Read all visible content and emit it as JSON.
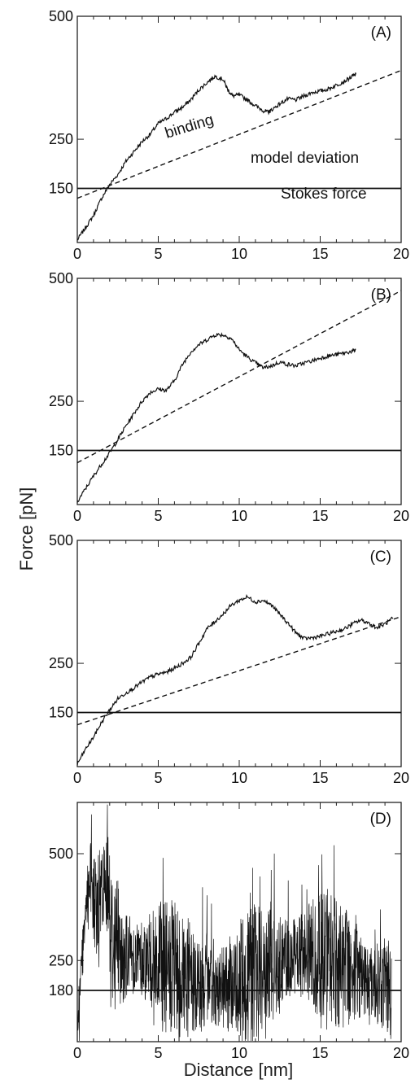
{
  "figure": {
    "ylabel": "Force [pN]",
    "xlabel": "Distance [nm]"
  },
  "chart_data": [
    {
      "type": "line",
      "panel_label": "(A)",
      "xlim": [
        0,
        20
      ],
      "ylim": [
        40,
        500
      ],
      "x_ticks": [
        0,
        5,
        10,
        15,
        20
      ],
      "y_ticks": [
        150,
        250,
        500
      ],
      "grid": false,
      "annotations": [
        "binding",
        "model deviation",
        "Stokes force"
      ],
      "series": [
        {
          "style": "solid",
          "x": [
            0,
            0.5,
            1,
            1.5,
            2,
            2.5,
            3,
            3.5,
            4,
            4.5,
            5,
            5.5,
            6,
            6.5,
            7,
            7.5,
            8,
            8.5,
            9,
            9.3,
            9.6,
            10,
            10.5,
            11,
            11.5,
            11.8,
            12,
            12.5,
            13,
            13.5,
            14,
            14.5,
            15,
            15.5,
            16,
            16.5,
            17,
            17.2
          ],
          "y": [
            45,
            70,
            95,
            130,
            158,
            178,
            205,
            225,
            245,
            260,
            282,
            292,
            305,
            315,
            330,
            350,
            365,
            378,
            372,
            350,
            338,
            340,
            330,
            318,
            308,
            305,
            310,
            322,
            332,
            330,
            338,
            345,
            348,
            352,
            360,
            368,
            378,
            382
          ]
        },
        {
          "style": "dashed",
          "x": [
            0,
            20
          ],
          "y": [
            130,
            390
          ]
        },
        {
          "style": "solid",
          "x": [
            0,
            20
          ],
          "y": [
            150,
            150
          ]
        }
      ]
    },
    {
      "type": "line",
      "panel_label": "(B)",
      "xlim": [
        0,
        20
      ],
      "ylim": [
        40,
        500
      ],
      "x_ticks": [
        0,
        5,
        10,
        15,
        20
      ],
      "y_ticks": [
        150,
        250,
        500
      ],
      "grid": false,
      "series": [
        {
          "style": "solid",
          "x": [
            0,
            0.5,
            1,
            1.5,
            2,
            2.5,
            3,
            3.5,
            4,
            4.5,
            5,
            5.5,
            6,
            6.5,
            7,
            7.5,
            8,
            8.5,
            9,
            9.5,
            10,
            10.5,
            11,
            11.5,
            12,
            12.5,
            13,
            13.5,
            14,
            14.5,
            15,
            15.5,
            16,
            16.5,
            17,
            17.2
          ],
          "y": [
            45,
            72,
            98,
            122,
            145,
            172,
            200,
            225,
            250,
            268,
            275,
            272,
            292,
            325,
            350,
            365,
            375,
            385,
            385,
            378,
            355,
            340,
            328,
            318,
            322,
            330,
            325,
            322,
            328,
            332,
            338,
            342,
            345,
            348,
            352,
            355
          ]
        },
        {
          "style": "dashed",
          "x": [
            0,
            20
          ],
          "y": [
            125,
            475
          ]
        },
        {
          "style": "solid",
          "x": [
            0,
            20
          ],
          "y": [
            150,
            150
          ]
        }
      ]
    },
    {
      "type": "line",
      "panel_label": "(C)",
      "xlim": [
        0,
        20
      ],
      "ylim": [
        40,
        500
      ],
      "x_ticks": [
        0,
        5,
        10,
        15,
        20
      ],
      "y_ticks": [
        150,
        250,
        500
      ],
      "grid": false,
      "series": [
        {
          "style": "solid",
          "x": [
            0,
            0.5,
            1,
            1.5,
            2,
            2.5,
            3,
            3.5,
            4,
            4.5,
            5,
            5.5,
            6,
            6.5,
            7,
            7.5,
            8,
            8.5,
            9,
            9.5,
            10,
            10.5,
            11,
            11.5,
            12,
            12.5,
            13,
            13.5,
            14,
            14.5,
            15,
            15.5,
            16,
            16.5,
            17,
            17.5,
            18,
            18.5,
            19,
            19.5
          ],
          "y": [
            45,
            75,
            100,
            130,
            155,
            178,
            190,
            200,
            212,
            222,
            228,
            232,
            240,
            250,
            262,
            290,
            320,
            335,
            350,
            368,
            378,
            385,
            375,
            378,
            368,
            350,
            332,
            312,
            300,
            302,
            305,
            310,
            315,
            320,
            330,
            338,
            332,
            322,
            330,
            342
          ]
        },
        {
          "style": "dashed",
          "x": [
            0,
            20
          ],
          "y": [
            125,
            345
          ]
        },
        {
          "style": "solid",
          "x": [
            0,
            20
          ],
          "y": [
            150,
            150
          ]
        }
      ]
    },
    {
      "type": "line",
      "panel_label": "(D)",
      "xlim": [
        0,
        20
      ],
      "ylim": [
        60,
        620
      ],
      "x_ticks": [
        0,
        5,
        10,
        15,
        20
      ],
      "y_ticks": [
        180,
        250,
        500
      ],
      "grid": false,
      "series": [
        {
          "style": "noisy",
          "x_range": [
            0,
            19.4
          ],
          "baseline": 180
        },
        {
          "style": "solid",
          "x": [
            0,
            20
          ],
          "y": [
            180,
            180
          ]
        }
      ]
    }
  ]
}
